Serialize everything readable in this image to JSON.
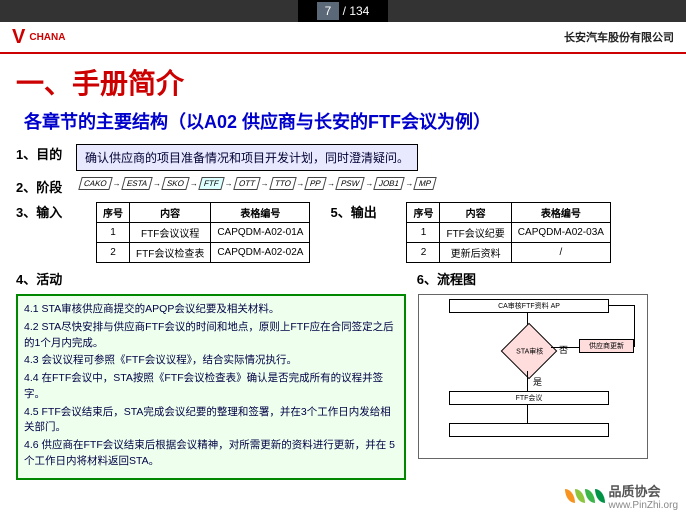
{
  "page": {
    "current": "7",
    "total": "134"
  },
  "header": {
    "logo_brand": "CHANA",
    "company": "长安汽车股份有限公司"
  },
  "h1": "一、手册简介",
  "h2": "各章节的主要结构（以A02 供应商与长安的FTF会议为例）",
  "labels": {
    "l1": "1、目的",
    "l2": "2、阶段",
    "l3": "3、输入",
    "l4": "4、活动",
    "l5": "5、输出",
    "l6": "6、流程图"
  },
  "purpose": "确认供应商的项目准备情况和项目开发计划，同时澄清疑问。",
  "phases": [
    "CAKO",
    "ESTA",
    "SKO",
    "FTF",
    "OTT",
    "TTO",
    "PP",
    "PSW",
    "JOB1",
    "MP"
  ],
  "phase_hl_idx": 3,
  "input_table": {
    "headers": [
      "序号",
      "内容",
      "表格编号"
    ],
    "rows": [
      [
        "1",
        "FTF会议议程",
        "CAPQDM-A02-01A"
      ],
      [
        "2",
        "FTF会议检查表",
        "CAPQDM-A02-02A"
      ]
    ]
  },
  "output_table": {
    "headers": [
      "序号",
      "内容",
      "表格编号"
    ],
    "rows": [
      [
        "1",
        "FTF会议纪要",
        "CAPQDM-A02-03A"
      ],
      [
        "2",
        "更新后资料",
        "/"
      ]
    ]
  },
  "activities": [
    "4.1 STA审核供应商提交的APQP会议纪要及相关材料。",
    "4.2 STA尽快安排与供应商FTF会议的时间和地点，原则上FTF应在合同签定之后的1个月内完成。",
    "4.3 会议议程可参照《FTF会议议程》，结合实际情况执行。",
    "4.4 在FTF会议中，STA按照《FTF会议检查表》确认是否完成所有的议程并签字。",
    "4.5 FTF会议结束后，STA完成会议纪要的整理和签署，并在3个工作日内发给相关部门。",
    "4.6 供应商在FTF会议结束后根据会议精神，对所需更新的资料进行更新，并在 5个工作日内将材料返回STA。"
  ],
  "flowchart": {
    "n1": "CA审核FTF资料 AP",
    "d1": "STA审核",
    "n2": "供应商更新",
    "n3": "FTF会议",
    "yes": "是",
    "no": "否"
  },
  "watermark": {
    "t1": "品质协会",
    "t2": "www.PinZhi.org"
  },
  "colors": {
    "leaf1": "#f7931e",
    "leaf2": "#8cc63f",
    "leaf3": "#39b54a",
    "leaf4": "#009245"
  }
}
